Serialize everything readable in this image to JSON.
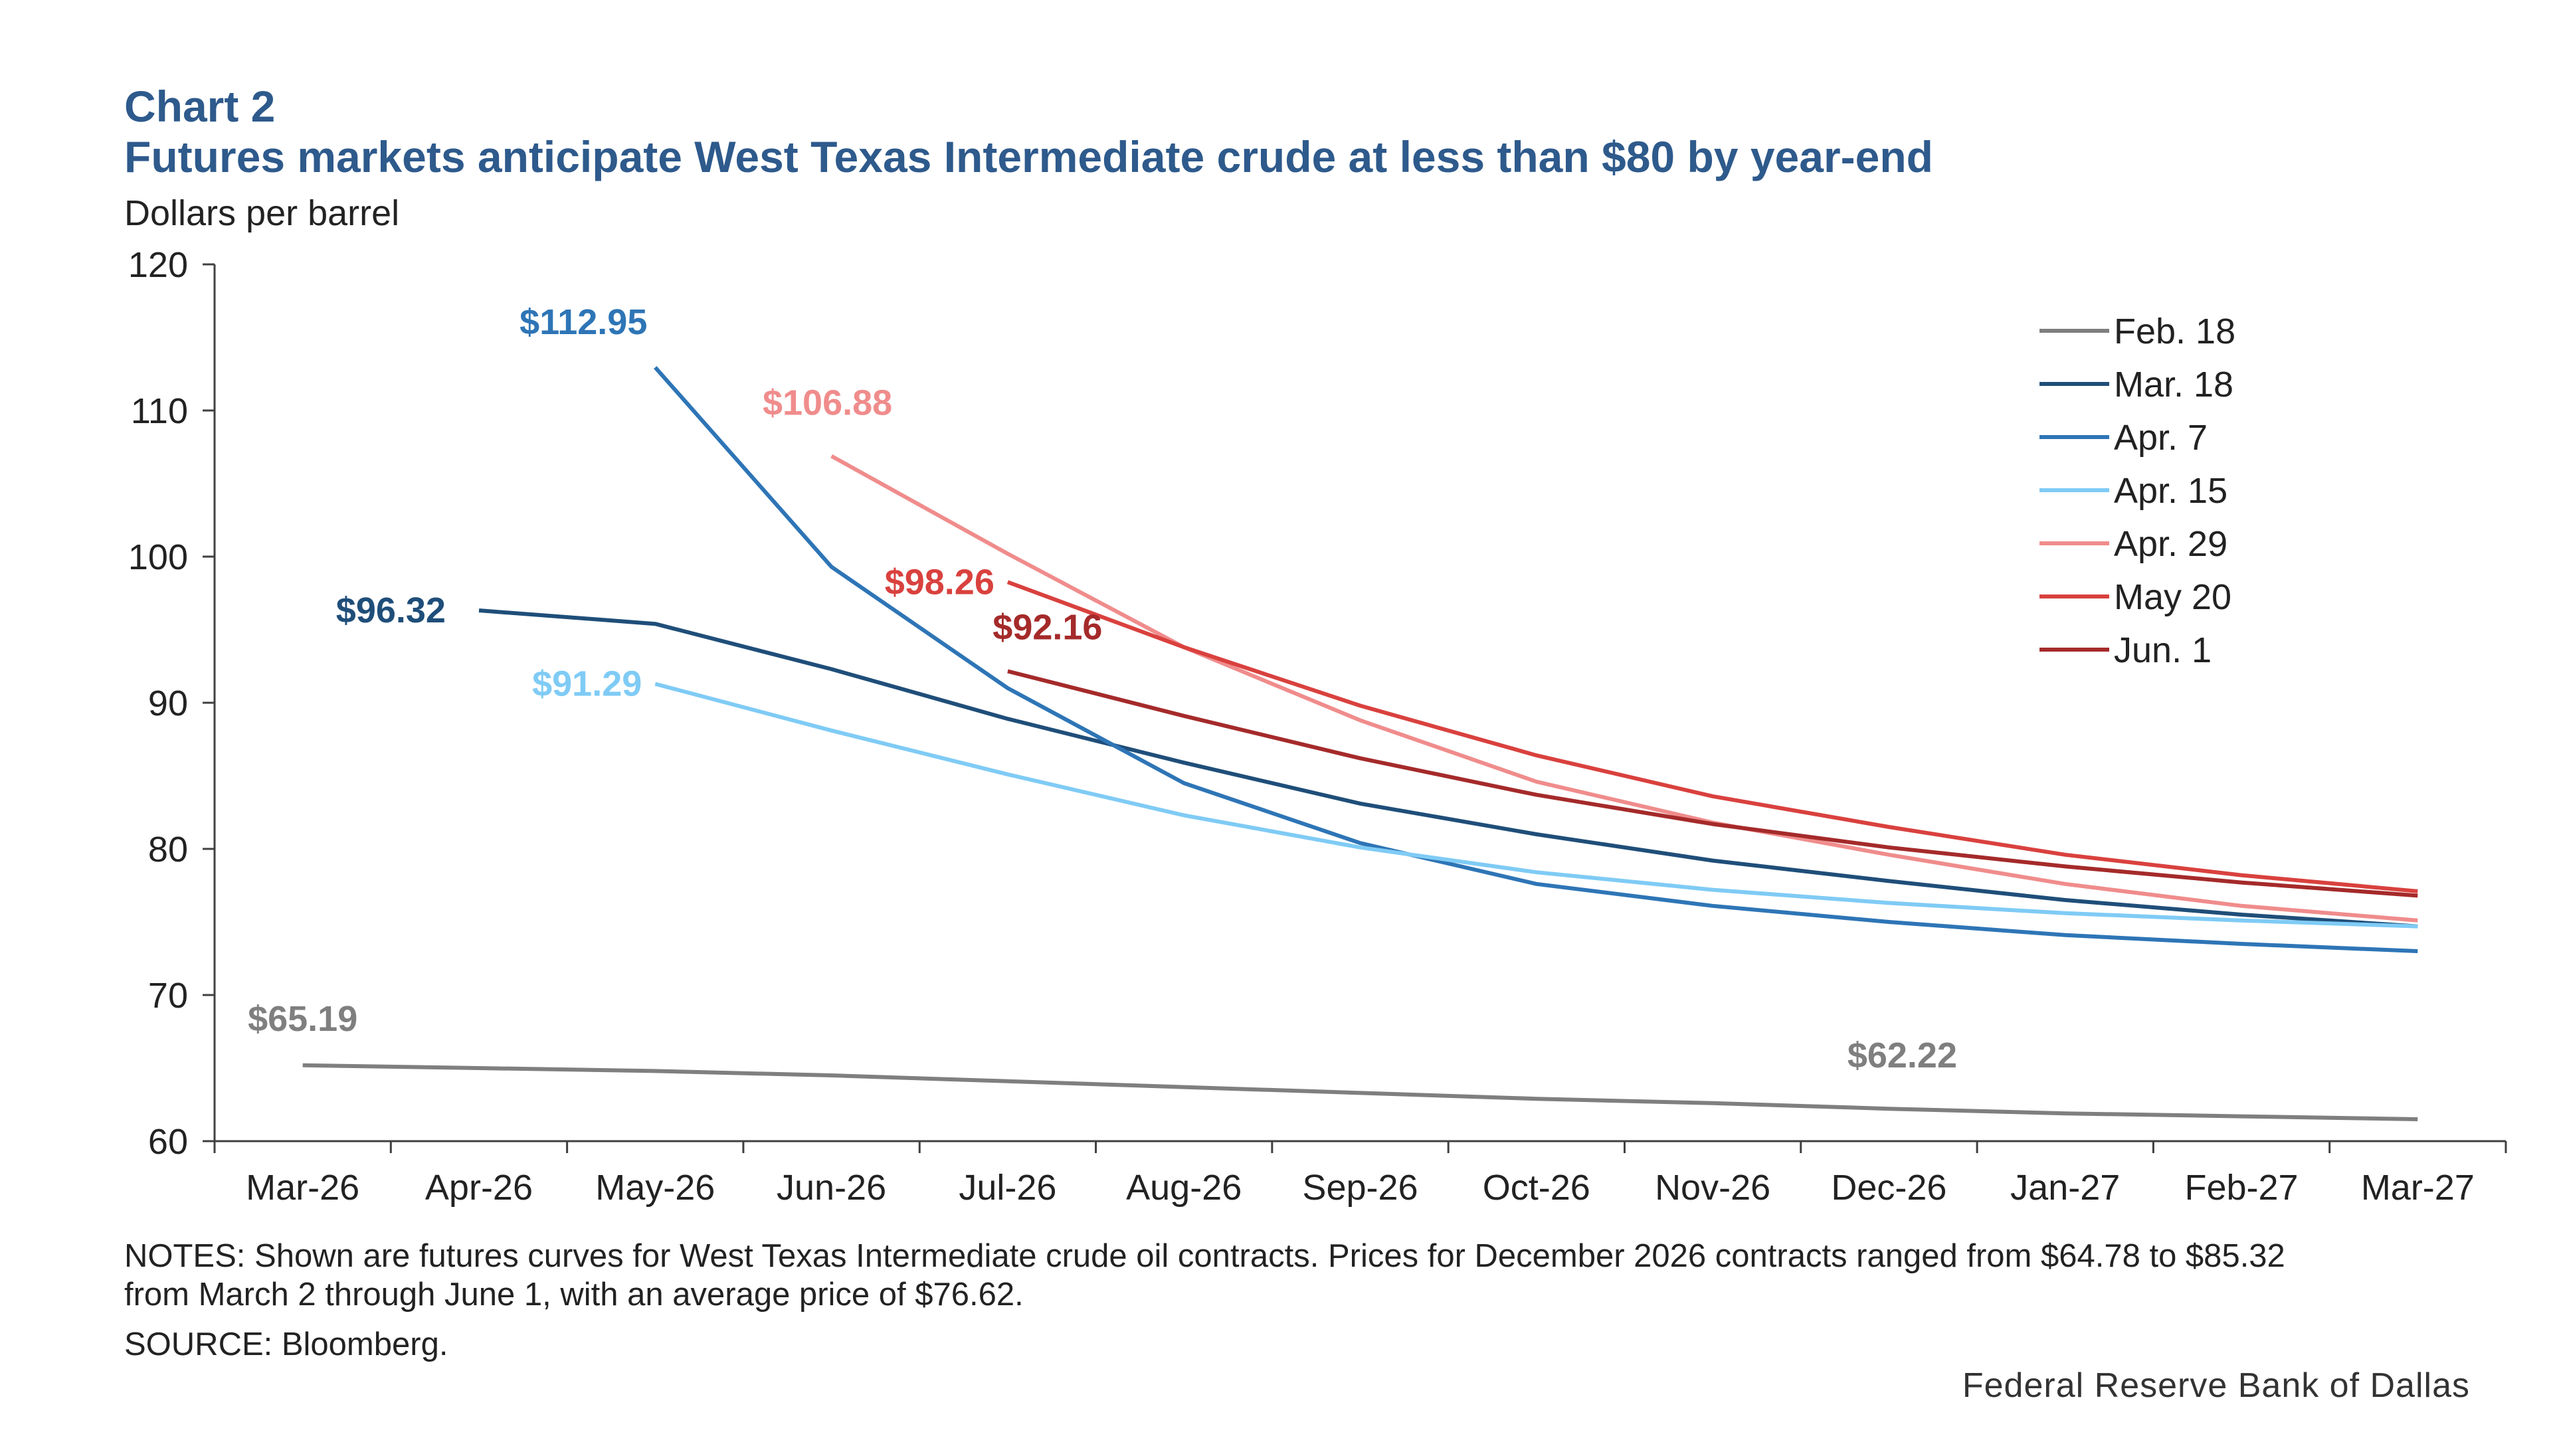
{
  "header": {
    "title": "Chart 2",
    "subtitle": "Futures markets anticipate West Texas Intermediate crude at less than $80 by year-end",
    "unit_label": "Dollars per barrel"
  },
  "footer": {
    "notes_line1": "NOTES: Shown are futures curves for West Texas Intermediate crude oil contracts. Prices for December 2026 contracts ranged from $64.78 to $85.32",
    "notes_line2": "from March 2 through June 1, with an average price of $76.62.",
    "source": "SOURCE: Bloomberg.",
    "credit": "Federal Reserve Bank of Dallas"
  },
  "chart_data": {
    "type": "line",
    "title": "Futures markets anticipate West Texas Intermediate crude at less than $80 by year-end",
    "ylabel": "Dollars per barrel",
    "ylim": [
      60,
      120
    ],
    "yticks": [
      60,
      70,
      80,
      90,
      100,
      110,
      120
    ],
    "grid": false,
    "legend_position": "top-right",
    "categories": [
      "Mar-26",
      "Apr-26",
      "May-26",
      "Jun-26",
      "Jul-26",
      "Aug-26",
      "Sep-26",
      "Oct-26",
      "Nov-26",
      "Dec-26",
      "Jan-27",
      "Feb-27",
      "Mar-27"
    ],
    "series": [
      {
        "name": "Feb. 18",
        "color": "#7F7F7F",
        "values": [
          65.19,
          65.0,
          64.8,
          64.5,
          64.1,
          63.7,
          63.3,
          62.9,
          62.6,
          62.22,
          61.9,
          61.7,
          61.5
        ],
        "label": "$65.19",
        "label_point": 0,
        "label2": "$62.22",
        "label2_point": 9
      },
      {
        "name": "Mar. 18",
        "color": "#1F4E79",
        "values": [
          null,
          96.32,
          95.4,
          92.3,
          88.9,
          85.9,
          83.1,
          81.0,
          79.2,
          77.8,
          76.5,
          75.5,
          74.7
        ],
        "label": "$96.32",
        "label_point": 1
      },
      {
        "name": "Apr. 7",
        "color": "#2E75B6",
        "values": [
          null,
          null,
          112.95,
          99.3,
          91.0,
          84.5,
          80.4,
          77.6,
          76.1,
          75.0,
          74.1,
          73.5,
          73.0
        ],
        "label": "$112.95",
        "label_point": 2
      },
      {
        "name": "Apr. 15",
        "color": "#7FCBF5",
        "values": [
          null,
          null,
          91.29,
          88.1,
          85.1,
          82.3,
          80.1,
          78.4,
          77.2,
          76.3,
          75.6,
          75.1,
          74.7
        ],
        "label": "$91.29",
        "label_point": 2
      },
      {
        "name": "Apr. 29",
        "color": "#F08C8C",
        "values": [
          null,
          null,
          null,
          106.88,
          100.2,
          93.8,
          88.8,
          84.6,
          81.8,
          79.6,
          77.6,
          76.1,
          75.1
        ],
        "label": "$106.88",
        "label_point": 3
      },
      {
        "name": "May 20",
        "color": "#D9413E",
        "values": [
          null,
          null,
          null,
          null,
          98.26,
          93.8,
          89.8,
          86.4,
          83.6,
          81.5,
          79.6,
          78.2,
          77.1
        ],
        "label": "$98.26",
        "label_point": 4
      },
      {
        "name": "Jun. 1",
        "color": "#A52A2A",
        "values": [
          null,
          null,
          null,
          null,
          92.16,
          89.1,
          86.2,
          83.7,
          81.7,
          80.1,
          78.8,
          77.7,
          76.8
        ],
        "label": "$92.16",
        "label_point": 4
      }
    ]
  }
}
